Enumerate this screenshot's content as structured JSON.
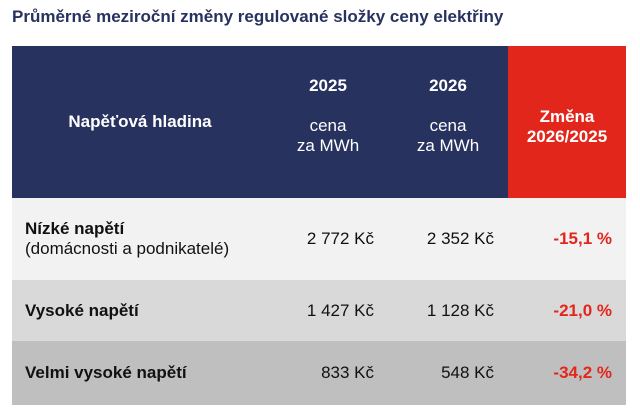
{
  "title": "Průměrné meziroční změny regulované složky ceny elektřiny",
  "table": {
    "header": {
      "label": "Napěťová hladina",
      "years": [
        {
          "year": "2025",
          "unit": [
            "cena",
            "za MWh"
          ]
        },
        {
          "year": "2026",
          "unit": [
            "cena",
            "za MWh"
          ]
        }
      ],
      "change": [
        "Změna",
        "2026/2025"
      ]
    },
    "rows": [
      {
        "name": "Nízké napětí",
        "note": "(domácnosti a podnikatelé)",
        "cells": [
          "2 772 Kč",
          "2 352 Kč",
          "-15,1 %"
        ]
      },
      {
        "name": "Vysoké napětí",
        "cells": [
          "1 427 Kč",
          "1 128 Kč",
          "-21,0 %"
        ]
      },
      {
        "name": "Velmi vysoké napětí",
        "cells": [
          "833 Kč",
          "548 Kč",
          "-34,2 %"
        ]
      }
    ]
  }
}
